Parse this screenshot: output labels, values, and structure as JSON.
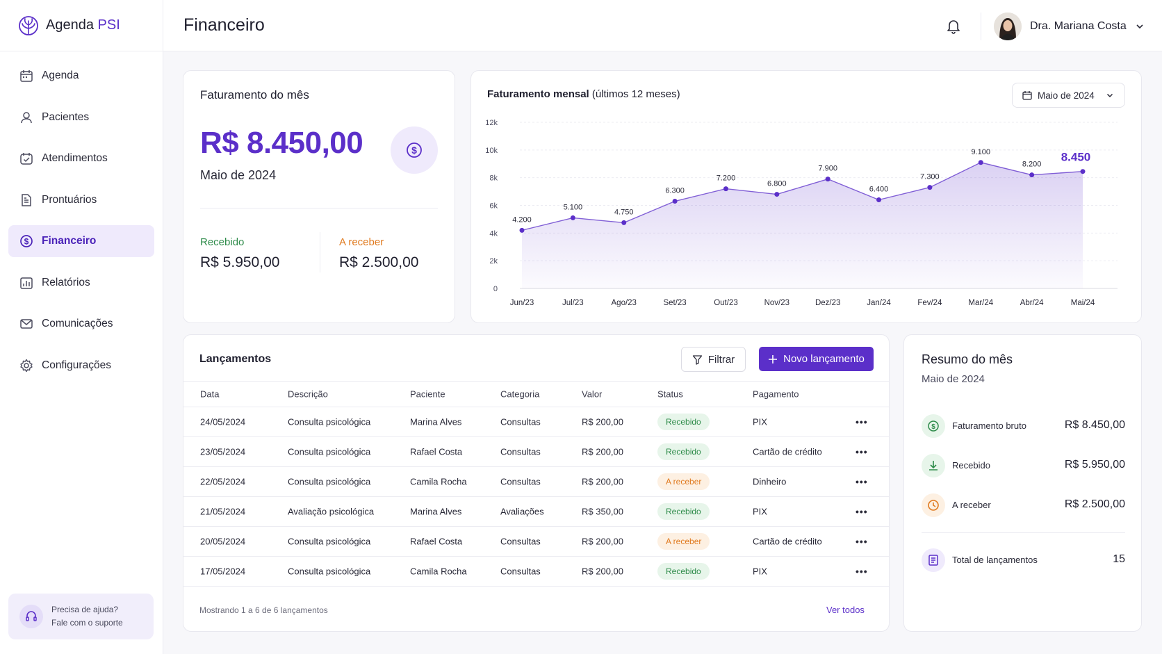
{
  "brand": {
    "name": "Agenda",
    "accent": "PSI"
  },
  "sidebar": {
    "items": [
      {
        "label": "Agenda",
        "icon": "calendar-icon"
      },
      {
        "label": "Pacientes",
        "icon": "user-icon"
      },
      {
        "label": "Atendimentos",
        "icon": "check-calendar-icon"
      },
      {
        "label": "Prontuários",
        "icon": "document-icon"
      },
      {
        "label": "Financeiro",
        "icon": "dollar-circle-icon"
      },
      {
        "label": "Relatórios",
        "icon": "bar-chart-icon"
      },
      {
        "label": "Comunicações",
        "icon": "mail-icon"
      },
      {
        "label": "Configurações",
        "icon": "gear-icon"
      }
    ],
    "active": "Financeiro",
    "help": {
      "title": "Precisa de ajuda?",
      "subtitle": "Fale com o suporte"
    }
  },
  "header": {
    "title": "Financeiro",
    "user_name": "Dra. Mariana Costa"
  },
  "faturamento": {
    "title": "Faturamento do mês",
    "value": "R$ 8.450,00",
    "month": "Maio de 2024",
    "recebido_label": "Recebido",
    "recebido_value": "R$ 5.950,00",
    "a_receber_label": "A receber",
    "a_receber_value": "R$ 2.500,00"
  },
  "chart": {
    "title_bold": "Faturamento mensal",
    "title_rest": "(últimos 12 meses)",
    "selector": "Maio de 2024"
  },
  "chart_data": {
    "type": "area",
    "categories": [
      "Jun/23",
      "Jul/23",
      "Ago/23",
      "Set/23",
      "Out/23",
      "Nov/23",
      "Dez/23",
      "Jan/24",
      "Fev/24",
      "Mar/24",
      "Abr/24",
      "Mai/24"
    ],
    "values": [
      4200,
      5100,
      4750,
      6300,
      7200,
      6800,
      7900,
      6400,
      7300,
      9100,
      8200,
      8450
    ],
    "data_labels": [
      "4.200",
      "5.100",
      "4.750",
      "6.300",
      "7.200",
      "6.800",
      "7.900",
      "6.400",
      "7.300",
      "9.100",
      "8.200",
      "8.450"
    ],
    "yticks": [
      0,
      2000,
      4000,
      6000,
      8000,
      10000,
      12000
    ],
    "ytick_labels": [
      "0",
      "2k",
      "4k",
      "6k",
      "8k",
      "10k",
      "12k"
    ],
    "ylim": [
      0,
      12000
    ],
    "grid": true,
    "color": "#5b2fc9"
  },
  "lancamentos": {
    "title": "Lançamentos",
    "filter_label": "Filtrar",
    "new_label": "Novo lançamento",
    "columns": [
      "Data",
      "Descrição",
      "Paciente",
      "Categoria",
      "Valor",
      "Status",
      "Pagamento"
    ],
    "rows": [
      {
        "data": "24/05/2024",
        "desc": "Consulta psicológica",
        "paciente": "Marina Alves",
        "categoria": "Consultas",
        "valor": "R$ 200,00",
        "status": "Recebido",
        "pagamento": "PIX"
      },
      {
        "data": "23/05/2024",
        "desc": "Consulta psicológica",
        "paciente": "Rafael Costa",
        "categoria": "Consultas",
        "valor": "R$ 200,00",
        "status": "Recebido",
        "pagamento": "Cartão de crédito"
      },
      {
        "data": "22/05/2024",
        "desc": "Consulta psicológica",
        "paciente": "Camila Rocha",
        "categoria": "Consultas",
        "valor": "R$ 200,00",
        "status": "A receber",
        "pagamento": "Dinheiro"
      },
      {
        "data": "21/05/2024",
        "desc": "Avaliação psicológica",
        "paciente": "Marina Alves",
        "categoria": "Avaliações",
        "valor": "R$ 350,00",
        "status": "Recebido",
        "pagamento": "PIX"
      },
      {
        "data": "20/05/2024",
        "desc": "Consulta psicológica",
        "paciente": "Rafael Costa",
        "categoria": "Consultas",
        "valor": "R$ 200,00",
        "status": "A receber",
        "pagamento": "Cartão de crédito"
      },
      {
        "data": "17/05/2024",
        "desc": "Consulta psicológica",
        "paciente": "Camila Rocha",
        "categoria": "Consultas",
        "valor": "R$ 200,00",
        "status": "Recebido",
        "pagamento": "PIX"
      }
    ],
    "footer_text": "Mostrando 1 a 6 de 6 lançamentos",
    "ver_todos": "Ver todos"
  },
  "resumo": {
    "title": "Resumo do mês",
    "month": "Maio de 2024",
    "items": [
      {
        "label": "Faturamento bruto",
        "value": "R$ 8.450,00",
        "icon": "dollar-circle-icon"
      },
      {
        "label": "Recebido",
        "value": "R$ 5.950,00",
        "icon": "download-arrow-icon"
      },
      {
        "label": "A receber",
        "value": "R$ 2.500,00",
        "icon": "clock-icon"
      }
    ],
    "total_label": "Total de lançamentos",
    "total_value": "15"
  },
  "colors": {
    "accent": "#5b2fc9",
    "green": "#2e8b4a",
    "orange": "#e07a1f"
  }
}
